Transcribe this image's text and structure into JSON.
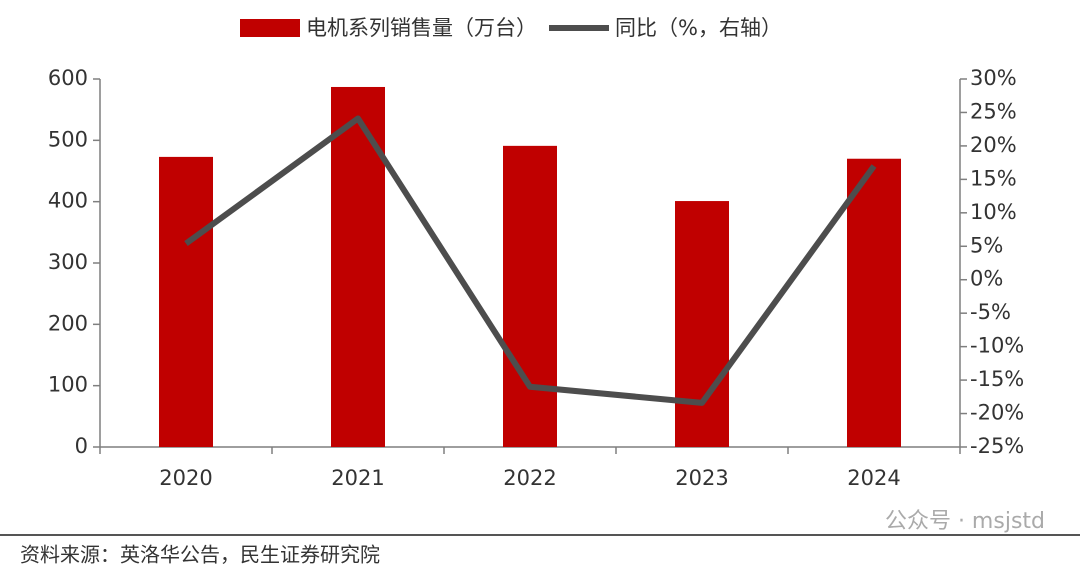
{
  "chart_data": {
    "type": "bar_line",
    "categories": [
      "2020",
      "2021",
      "2022",
      "2023",
      "2024"
    ],
    "series": [
      {
        "name": "电机系列销售量（万台）",
        "type": "bar",
        "color": "#c00000",
        "values": [
          473,
          587,
          491,
          401,
          470
        ]
      },
      {
        "name": "同比（%，右轴）",
        "type": "line",
        "axis": "y2",
        "color": "#4d4d4d",
        "values": [
          5.4,
          24.1,
          -16,
          -18.4,
          17
        ]
      }
    ],
    "ylim": [
      0,
      600
    ],
    "yticks": [
      0,
      100,
      200,
      300,
      400,
      500,
      600
    ],
    "y2lim": [
      -25,
      30
    ],
    "y2ticks": [
      {
        "value": -25,
        "label": "-25%"
      },
      {
        "value": -20,
        "label": "-20%"
      },
      {
        "value": -15,
        "label": "-15%"
      },
      {
        "value": -10,
        "label": "-10%"
      },
      {
        "value": -5,
        "label": "-5%"
      },
      {
        "value": 0,
        "label": "0%"
      },
      {
        "value": 5,
        "label": "5%"
      },
      {
        "value": 10,
        "label": "10%"
      },
      {
        "value": 15,
        "label": "15%"
      },
      {
        "value": 20,
        "label": "20%"
      },
      {
        "value": 25,
        "label": "25%"
      },
      {
        "value": 30,
        "label": "30%"
      }
    ],
    "legend": "top",
    "source": "资料来源：英洛华公告，民生证券研究院",
    "watermark": "公众号 · msjstd"
  }
}
